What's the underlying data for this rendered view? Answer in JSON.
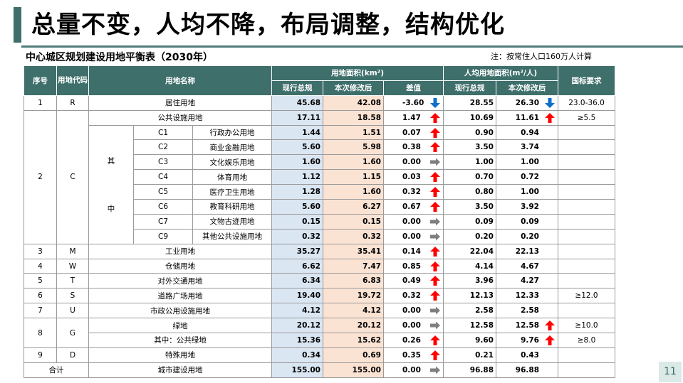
{
  "slide": {
    "title": "总量不变，人均不降，布局调整，结构优化",
    "subtitle": "中心城区规划建设用地平衡表（2030年）",
    "note": "注：按常住人口160万人计算",
    "page_number": "11"
  },
  "headers": {
    "seq": "序号",
    "code": "用地代码",
    "name": "用地名称",
    "area_group": "用地面积(km²)",
    "per_capita_group": "人均用地面积(m²/人)",
    "national": "国标要求",
    "current": "现行总规",
    "revised": "本次修改后",
    "diff": "差值",
    "pc_current": "现行总规",
    "pc_revised": "本次修改后"
  },
  "sub_group_label": {
    "top": "其",
    "bottom": "中"
  },
  "rows": [
    {
      "seq": "1",
      "code": "R",
      "name": "居住用地",
      "cur": "45.68",
      "rev": "42.08",
      "diff": "-3.60",
      "diff_arrow": "down",
      "pc_cur": "28.55",
      "pc_rev": "26.30",
      "pc_arrow": "down",
      "std": "23.0-36.0"
    },
    {
      "seq": "2",
      "code": "C",
      "name": "公共设施用地",
      "cur": "17.11",
      "rev": "18.58",
      "diff": "1.47",
      "diff_arrow": "up",
      "pc_cur": "10.69",
      "pc_rev": "11.61",
      "pc_arrow": "up",
      "std": "≥5.5"
    },
    {
      "sub_code": "C1",
      "name": "行政办公用地",
      "cur": "1.44",
      "rev": "1.51",
      "diff": "0.07",
      "diff_arrow": "up",
      "pc_cur": "0.90",
      "pc_rev": "0.94",
      "pc_arrow": "",
      "std": ""
    },
    {
      "sub_code": "C2",
      "name": "商业金融用地",
      "cur": "5.60",
      "rev": "5.98",
      "diff": "0.38",
      "diff_arrow": "up",
      "pc_cur": "3.50",
      "pc_rev": "3.74",
      "pc_arrow": "",
      "std": ""
    },
    {
      "sub_code": "C3",
      "name": "文化娱乐用地",
      "cur": "1.60",
      "rev": "1.60",
      "diff": "0.00",
      "diff_arrow": "right",
      "pc_cur": "1.00",
      "pc_rev": "1.00",
      "pc_arrow": "",
      "std": ""
    },
    {
      "sub_code": "C4",
      "name": "体育用地",
      "cur": "1.12",
      "rev": "1.15",
      "diff": "0.03",
      "diff_arrow": "up",
      "pc_cur": "0.70",
      "pc_rev": "0.72",
      "pc_arrow": "",
      "std": ""
    },
    {
      "sub_code": "C5",
      "name": "医疗卫生用地",
      "cur": "1.28",
      "rev": "1.60",
      "diff": "0.32",
      "diff_arrow": "up",
      "pc_cur": "0.80",
      "pc_rev": "1.00",
      "pc_arrow": "",
      "std": ""
    },
    {
      "sub_code": "C6",
      "name": "教育科研用地",
      "cur": "5.60",
      "rev": "6.27",
      "diff": "0.67",
      "diff_arrow": "up",
      "pc_cur": "3.50",
      "pc_rev": "3.92",
      "pc_arrow": "",
      "std": ""
    },
    {
      "sub_code": "C7",
      "name": "文物古迹用地",
      "cur": "0.15",
      "rev": "0.15",
      "diff": "0.00",
      "diff_arrow": "right",
      "pc_cur": "0.09",
      "pc_rev": "0.09",
      "pc_arrow": "",
      "std": ""
    },
    {
      "sub_code": "C9",
      "name": "其他公共设施用地",
      "cur": "0.32",
      "rev": "0.32",
      "diff": "0.00",
      "diff_arrow": "right",
      "pc_cur": "0.20",
      "pc_rev": "0.20",
      "pc_arrow": "",
      "std": ""
    },
    {
      "seq": "3",
      "code": "M",
      "name": "工业用地",
      "cur": "35.27",
      "rev": "35.41",
      "diff": "0.14",
      "diff_arrow": "up",
      "pc_cur": "22.04",
      "pc_rev": "22.13",
      "pc_arrow": "",
      "std": ""
    },
    {
      "seq": "4",
      "code": "W",
      "name": "仓储用地",
      "cur": "6.62",
      "rev": "7.47",
      "diff": "0.85",
      "diff_arrow": "up",
      "pc_cur": "4.14",
      "pc_rev": "4.67",
      "pc_arrow": "",
      "std": ""
    },
    {
      "seq": "5",
      "code": "T",
      "name": "对外交通用地",
      "cur": "6.34",
      "rev": "6.83",
      "diff": "0.49",
      "diff_arrow": "up",
      "pc_cur": "3.96",
      "pc_rev": "4.27",
      "pc_arrow": "",
      "std": ""
    },
    {
      "seq": "6",
      "code": "S",
      "name": "道路广场用地",
      "cur": "19.40",
      "rev": "19.72",
      "diff": "0.32",
      "diff_arrow": "up",
      "pc_cur": "12.13",
      "pc_rev": "12.33",
      "pc_arrow": "",
      "std": "≥12.0"
    },
    {
      "seq": "7",
      "code": "U",
      "name": "市政公用设施用地",
      "cur": "4.12",
      "rev": "4.12",
      "diff": "0.00",
      "diff_arrow": "right",
      "pc_cur": "2.58",
      "pc_rev": "2.58",
      "pc_arrow": "",
      "std": ""
    },
    {
      "seq": "8",
      "code": "G",
      "name": "绿地",
      "cur": "20.12",
      "rev": "20.12",
      "diff": "0.00",
      "diff_arrow": "right",
      "pc_cur": "12.58",
      "pc_rev": "12.58",
      "pc_arrow": "up",
      "std": "≥10.0"
    },
    {
      "name": "其中：公共绿地",
      "cur": "15.36",
      "rev": "15.62",
      "diff": "0.26",
      "diff_arrow": "up",
      "pc_cur": "9.60",
      "pc_rev": "9.76",
      "pc_arrow": "up",
      "std": "≥8.0"
    },
    {
      "seq": "9",
      "code": "D",
      "name": "特殊用地",
      "cur": "0.34",
      "rev": "0.69",
      "diff": "0.35",
      "diff_arrow": "up",
      "pc_cur": "0.21",
      "pc_rev": "0.43",
      "pc_arrow": "",
      "std": ""
    },
    {
      "seq": "合计",
      "name": "城市建设用地",
      "cur": "155.00",
      "rev": "155.00",
      "diff": "0.00",
      "diff_arrow": "right",
      "pc_cur": "96.88",
      "pc_rev": "96.88",
      "pc_arrow": "",
      "std": ""
    }
  ],
  "colors": {
    "accent": "#3f6f6b",
    "header_bg": "#3e6f6b",
    "current_col_bg": "#dbe6f3",
    "revised_col_bg": "#fbe3d4",
    "arrow_up": "#ff0000",
    "arrow_down": "#1070c8",
    "arrow_right": "#7f7f7f"
  },
  "icons": {
    "up": "arrow-up-icon",
    "down": "arrow-down-icon",
    "right": "arrow-right-icon"
  }
}
